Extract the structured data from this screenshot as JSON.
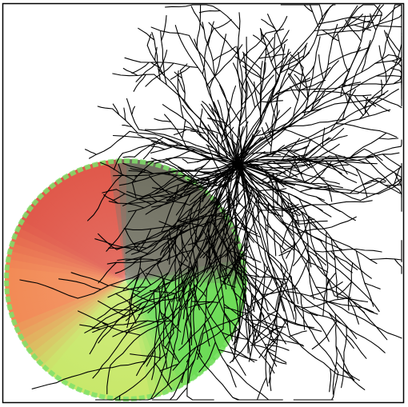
{
  "scene": {
    "background_color": "#ffffff",
    "frame_color": "#000000",
    "stroke_color": "#000000",
    "wheel_colors": {
      "red": "#e0584a",
      "orange": "#f28a55",
      "yellow_green": "#c8e86a",
      "green": "#6bdc55",
      "dark": "#6f6f60",
      "rim_green": "#7fe06a",
      "rim_red": "#e06060"
    }
  }
}
